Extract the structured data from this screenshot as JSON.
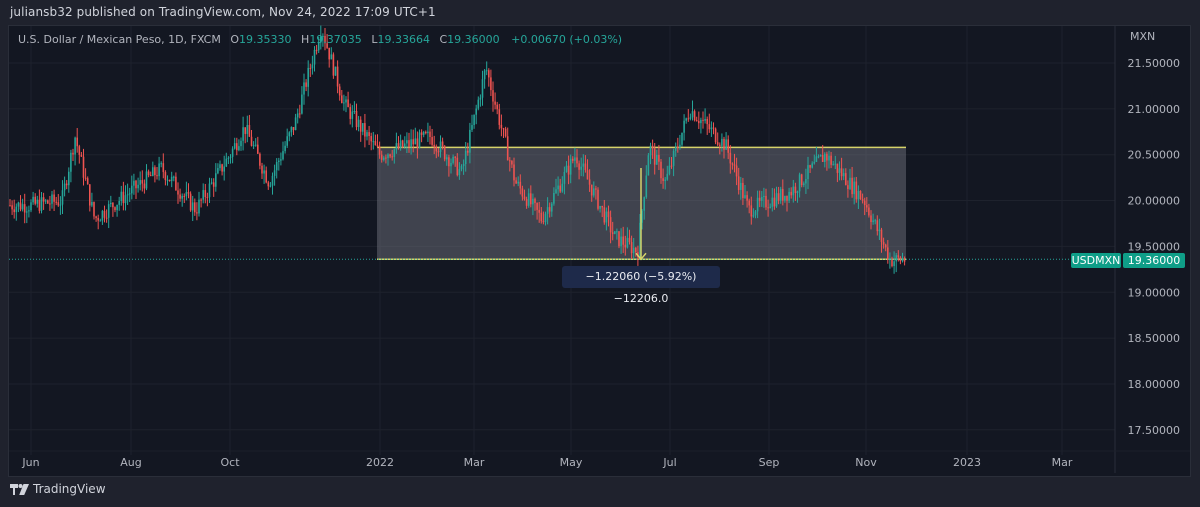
{
  "header": {
    "publisher_line": "juliansb32 published on TradingView.com, Nov 24, 2022 17:09 UTC+1"
  },
  "legend": {
    "symbol_desc": "U.S. Dollar / Mexican Peso, 1D, FXCM",
    "open_label": "O",
    "open": "19.35330",
    "high_label": "H",
    "high": "19.37035",
    "low_label": "L",
    "low": "19.33664",
    "close_label": "C",
    "close": "19.36000",
    "change": "+0.00670 (+0.03%)"
  },
  "price_axis": {
    "currency": "MXN",
    "ticks": [
      "21.50000",
      "21.00000",
      "20.50000",
      "20.00000",
      "19.50000",
      "19.00000",
      "18.50000",
      "18.00000",
      "17.50000"
    ]
  },
  "time_axis": {
    "ticks": [
      "Jun",
      "Aug",
      "Oct",
      "2022",
      "Mar",
      "May",
      "Jul",
      "Sep",
      "Nov",
      "2023",
      "Mar"
    ]
  },
  "last_price": {
    "symbol": "USDMXN",
    "value": "19.36000"
  },
  "measure_tool": {
    "label": "−1.22060 (−5.92%) −12206.0"
  },
  "footer": {
    "brand": "TradingView"
  },
  "colors": {
    "background": "#131722",
    "up": "#26a69a",
    "down": "#ef5350",
    "range_line": "#d6d36a",
    "range_fill": "#787b86",
    "last_price_tag": "#0f9e88"
  },
  "chart_data": {
    "type": "candlestick",
    "title": "U.S. Dollar / Mexican Peso, 1D, FXCM",
    "symbol": "USDMXN",
    "interval": "1D",
    "ylabel": "MXN",
    "ylim": [
      17.25,
      21.9
    ],
    "y_ticks": [
      21.5,
      21.0,
      20.5,
      20.0,
      19.5,
      19.0,
      18.5,
      18.0,
      17.5
    ],
    "x_ticks": [
      "Jun",
      "Aug",
      "Oct",
      "2022",
      "Mar",
      "May",
      "Jul",
      "Sep",
      "Nov",
      "2023",
      "Mar"
    ],
    "grid": true,
    "last": {
      "open": 19.3533,
      "high": 19.37035,
      "low": 19.33664,
      "close": 19.36,
      "change": 0.0067,
      "change_pct": 0.03
    },
    "approx_close_path": [
      {
        "x": "2021-06-01",
        "y": 19.95
      },
      {
        "x": "2021-06-20",
        "y": 20.0
      },
      {
        "x": "2021-06-28",
        "y": 20.7
      },
      {
        "x": "2021-07-10",
        "y": 19.8
      },
      {
        "x": "2021-08-01",
        "y": 20.1
      },
      {
        "x": "2021-08-20",
        "y": 20.35
      },
      {
        "x": "2021-09-10",
        "y": 19.9
      },
      {
        "x": "2021-10-01",
        "y": 20.5
      },
      {
        "x": "2021-10-10",
        "y": 20.8
      },
      {
        "x": "2021-10-25",
        "y": 20.2
      },
      {
        "x": "2021-11-10",
        "y": 20.85
      },
      {
        "x": "2021-11-26",
        "y": 21.9
      },
      {
        "x": "2021-12-10",
        "y": 21.05
      },
      {
        "x": "2022-01-01",
        "y": 20.5
      },
      {
        "x": "2022-02-01",
        "y": 20.7
      },
      {
        "x": "2022-02-20",
        "y": 20.3
      },
      {
        "x": "2022-03-07",
        "y": 21.45
      },
      {
        "x": "2022-03-25",
        "y": 20.2
      },
      {
        "x": "2022-04-10",
        "y": 19.8
      },
      {
        "x": "2022-05-01",
        "y": 20.5
      },
      {
        "x": "2022-05-25",
        "y": 19.6
      },
      {
        "x": "2022-06-08",
        "y": 19.45
      },
      {
        "x": "2022-06-15",
        "y": 20.6
      },
      {
        "x": "2022-06-25",
        "y": 20.2
      },
      {
        "x": "2022-07-10",
        "y": 21.0
      },
      {
        "x": "2022-08-01",
        "y": 20.6
      },
      {
        "x": "2022-08-15",
        "y": 19.9
      },
      {
        "x": "2022-09-10",
        "y": 20.1
      },
      {
        "x": "2022-10-01",
        "y": 20.5
      },
      {
        "x": "2022-10-25",
        "y": 20.0
      },
      {
        "x": "2022-11-10",
        "y": 19.35
      },
      {
        "x": "2022-11-24",
        "y": 19.36
      }
    ],
    "annotations": [
      {
        "type": "rectangle",
        "from_price": 20.58,
        "to_price": 19.36,
        "from_date": "2022-01-01",
        "to_date": "2022-11-24"
      },
      {
        "type": "measure",
        "from_price": 20.5806,
        "to_price": 19.36,
        "delta": -1.2206,
        "delta_pct": -5.92,
        "pips": -12206.0
      }
    ]
  }
}
